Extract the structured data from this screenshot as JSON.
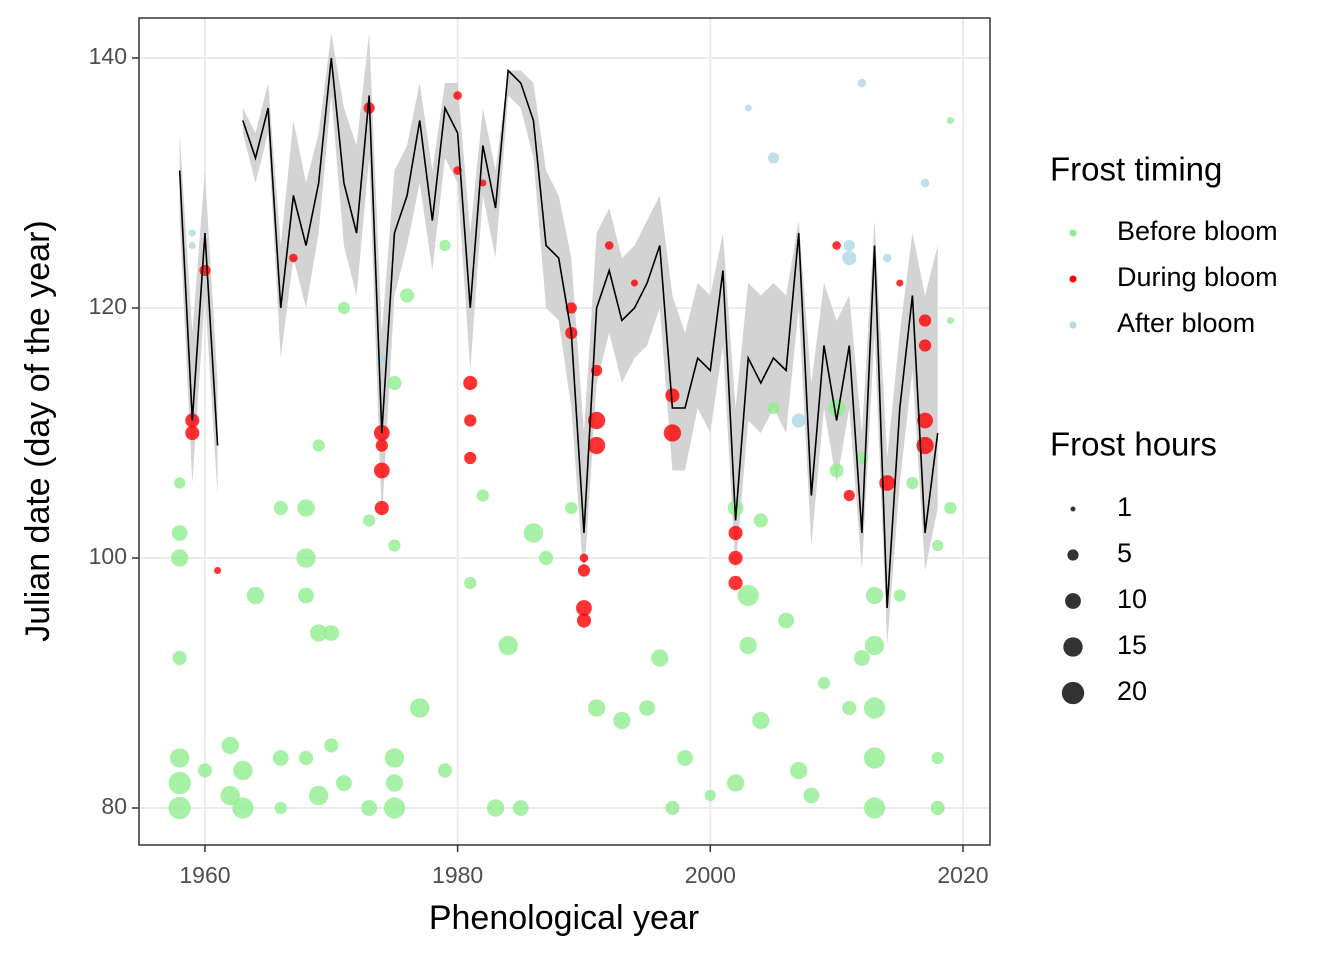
{
  "chart_data": {
    "type": "scatter",
    "x_label": "Phenological year",
    "y_label": "Julian date (day of the year)",
    "xlim": [
      1954.78,
      2022.14
    ],
    "ylim": [
      77.04,
      143.2
    ],
    "xticks": [
      1960,
      1980,
      2000,
      2020
    ],
    "yticks": [
      80,
      100,
      120,
      140
    ],
    "grid": true,
    "legend_title": "Frost timing",
    "size_legend": {
      "title": "Frost hours",
      "values": [
        1,
        5,
        10,
        15,
        20
      ],
      "color": "#333333"
    },
    "series": [
      {
        "name": "Before bloom",
        "color": "#90ee90",
        "x": [
          1958,
          1958,
          1958,
          1958,
          1958,
          1958,
          1958,
          1960,
          1962,
          1962,
          1963,
          1963,
          1964,
          1966,
          1966,
          1966,
          1968,
          1968,
          1968,
          1968,
          1969,
          1969,
          1969,
          1970,
          1970,
          1971,
          1971,
          1973,
          1973,
          1975,
          1975,
          1975,
          1975,
          1975,
          1976,
          1977,
          1979,
          1979,
          1981,
          1982,
          1983,
          1984,
          1985,
          1986,
          1987,
          1989,
          1991,
          1993,
          1995,
          1996,
          1997,
          1998,
          2000,
          2002,
          2002,
          2003,
          2003,
          2004,
          2004,
          2005,
          2006,
          2007,
          2008,
          2009,
          2010,
          2010,
          2011,
          2012,
          2012,
          2013,
          2013,
          2013,
          2013,
          2013,
          2015,
          2016,
          2018,
          2018,
          2018,
          2019,
          2019,
          2019
        ],
        "values": [
          80,
          82,
          84,
          100,
          102,
          92,
          106,
          83,
          81,
          85,
          80,
          83,
          97,
          104,
          84,
          80,
          100,
          104,
          97,
          84,
          81,
          94,
          109,
          85,
          94,
          120,
          82,
          80,
          103,
          80,
          84,
          82,
          101,
          114,
          121,
          88,
          125,
          83,
          98,
          105,
          80,
          93,
          80,
          102,
          100,
          104,
          88,
          87,
          88,
          92,
          80,
          84,
          81,
          104,
          82,
          97,
          93,
          87,
          103,
          112,
          95,
          83,
          81,
          90,
          107,
          112,
          88,
          92,
          108,
          80,
          84,
          88,
          93,
          97,
          97,
          106,
          80,
          84,
          101,
          135,
          119,
          104
        ],
        "sizes": [
          20,
          20,
          15,
          12,
          10,
          8,
          5,
          8,
          15,
          12,
          18,
          15,
          12,
          8,
          10,
          6,
          15,
          12,
          10,
          8,
          15,
          12,
          6,
          8,
          10,
          6,
          10,
          10,
          6,
          18,
          15,
          12,
          6,
          8,
          8,
          15,
          5,
          8,
          6,
          6,
          12,
          15,
          10,
          15,
          8,
          6,
          12,
          12,
          10,
          12,
          8,
          10,
          5,
          10,
          12,
          18,
          12,
          12,
          8,
          6,
          10,
          12,
          10,
          6,
          8,
          12,
          8,
          10,
          6,
          18,
          18,
          18,
          15,
          12,
          6,
          6,
          8,
          6,
          5,
          2,
          2,
          6
        ]
      },
      {
        "name": "During bloom",
        "color": "#ff0000",
        "x": [
          1959,
          1959,
          1960,
          1961,
          1967,
          1973,
          1974,
          1974,
          1974,
          1974,
          1980,
          1980,
          1981,
          1981,
          1981,
          1982,
          1989,
          1989,
          1990,
          1990,
          1990,
          1990,
          1991,
          1991,
          1991,
          1992,
          1994,
          1997,
          1997,
          2002,
          2002,
          2002,
          2010,
          2011,
          2014,
          2015,
          2017,
          2017,
          2017,
          2017
        ],
        "values": [
          111,
          110,
          123,
          99,
          124,
          136,
          110,
          107,
          104,
          109,
          137,
          131,
          114,
          111,
          108,
          130,
          120,
          118,
          99,
          96,
          95,
          100,
          111,
          109,
          115,
          125,
          122,
          113,
          110,
          102,
          100,
          98,
          125,
          105,
          106,
          122,
          119,
          117,
          111,
          109
        ],
        "sizes": [
          8,
          8,
          5,
          2,
          3,
          5,
          10,
          10,
          8,
          6,
          3,
          3,
          8,
          6,
          6,
          2,
          5,
          6,
          6,
          10,
          8,
          3,
          12,
          12,
          5,
          3,
          2,
          8,
          12,
          8,
          8,
          8,
          3,
          5,
          10,
          2,
          6,
          6,
          10,
          12
        ]
      },
      {
        "name": "After bloom",
        "color": "#add8e6",
        "x": [
          1959,
          1959,
          1974,
          2003,
          2005,
          2007,
          2011,
          2011,
          2012,
          2014,
          2017
        ],
        "values": [
          126,
          125,
          116,
          136,
          132,
          111,
          124,
          125,
          138,
          124,
          130
        ],
        "sizes": [
          2,
          2,
          3,
          2,
          5,
          8,
          8,
          5,
          3,
          3,
          3
        ]
      }
    ],
    "line": {
      "color": "#000000",
      "x": [
        1958,
        1959,
        1960,
        1961,
        1962,
        1963,
        1964,
        1965,
        1966,
        1967,
        1968,
        1969,
        1970,
        1971,
        1972,
        1973,
        1974,
        1975,
        1976,
        1977,
        1978,
        1979,
        1980,
        1981,
        1982,
        1983,
        1984,
        1985,
        1986,
        1987,
        1988,
        1989,
        1990,
        1991,
        1992,
        1993,
        1994,
        1995,
        1996,
        1997,
        1998,
        1999,
        2000,
        2001,
        2002,
        2003,
        2004,
        2005,
        2006,
        2007,
        2008,
        2009,
        2010,
        2011,
        2012,
        2013,
        2014,
        2015,
        2016,
        2017,
        2018
      ],
      "values": [
        131,
        111,
        126,
        109,
        null,
        135,
        132,
        136,
        120,
        129,
        125,
        130,
        140,
        130,
        126,
        137,
        110,
        126,
        129,
        135,
        127,
        136,
        134,
        120,
        133,
        128,
        139,
        138,
        135,
        125,
        124,
        118,
        102,
        120,
        123,
        119,
        120,
        122,
        125,
        112,
        112,
        116,
        115,
        123,
        103,
        116,
        114,
        116,
        115,
        126,
        105,
        117,
        111,
        117,
        102,
        125,
        96,
        112,
        121,
        102,
        110
      ]
    },
    "ribbon": {
      "color": "#d3d3d3",
      "upper": [
        134,
        118,
        131,
        114,
        null,
        136,
        134,
        138,
        125,
        135,
        130,
        134,
        142,
        136,
        133,
        142,
        118,
        131,
        133,
        138,
        131,
        138,
        138,
        126,
        136,
        131,
        139,
        139,
        138,
        131,
        129,
        124,
        110,
        126,
        128,
        124,
        125,
        127,
        129,
        121,
        118,
        122,
        121,
        126,
        112,
        122,
        121,
        122,
        121,
        127,
        114,
        122,
        119,
        121,
        110,
        127,
        108,
        118,
        126,
        121,
        125
      ],
      "lower": [
        127,
        106,
        121,
        105,
        null,
        134,
        130,
        134,
        116,
        124,
        120,
        126,
        137,
        125,
        121,
        132,
        103,
        121,
        125,
        130,
        123,
        132,
        130,
        115,
        129,
        124,
        137,
        136,
        132,
        120,
        119,
        112,
        98,
        114,
        118,
        114,
        116,
        117,
        120,
        107,
        107,
        112,
        110,
        117,
        99,
        111,
        110,
        112,
        110,
        120,
        101,
        112,
        106,
        112,
        99,
        118,
        93,
        106,
        115,
        99,
        104
      ]
    }
  }
}
